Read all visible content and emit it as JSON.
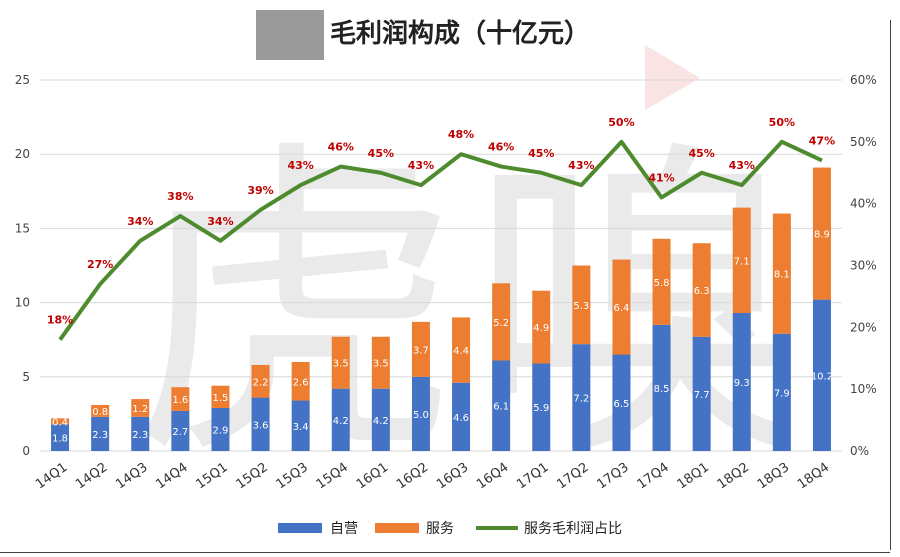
{
  "chart_data": {
    "type": "bar",
    "title": "毛利润构成（十亿元）",
    "categories": [
      "14Q1",
      "14Q2",
      "14Q3",
      "14Q4",
      "15Q1",
      "15Q2",
      "15Q3",
      "15Q4",
      "16Q1",
      "16Q2",
      "16Q3",
      "16Q4",
      "17Q1",
      "17Q2",
      "17Q3",
      "17Q4",
      "18Q1",
      "18Q2",
      "18Q3",
      "18Q4"
    ],
    "stacked": true,
    "ylim": [
      0,
      25
    ],
    "y_ticks": [
      0,
      5,
      10,
      15,
      20,
      25
    ],
    "y2lim": [
      0,
      60
    ],
    "y2_ticks": [
      "0%",
      "10%",
      "20%",
      "30%",
      "40%",
      "50%",
      "60%"
    ],
    "series": [
      {
        "name": "自营",
        "type": "bar",
        "color": "#4472C4",
        "values": [
          1.8,
          2.3,
          2.3,
          2.7,
          2.9,
          3.6,
          3.4,
          4.2,
          4.2,
          5.0,
          4.6,
          6.1,
          5.9,
          7.2,
          6.5,
          8.5,
          7.7,
          9.3,
          7.9,
          10.2
        ],
        "labels": [
          "1.8",
          "2.3",
          "2.3",
          "2.7",
          "2.9",
          "3.6",
          "3.4",
          "4.2",
          "4.2",
          "5.0",
          "4.6",
          "6.1",
          "5.9",
          "7.2",
          "6.5",
          "8.5",
          "7.7",
          "9.3",
          "7.9",
          "10.2"
        ]
      },
      {
        "name": "服务",
        "type": "bar",
        "color": "#ED7D31",
        "values": [
          0.4,
          0.8,
          1.2,
          1.6,
          1.5,
          2.2,
          2.6,
          3.5,
          3.5,
          3.7,
          4.4,
          5.2,
          4.9,
          5.3,
          6.4,
          5.8,
          6.3,
          7.1,
          8.1,
          8.9
        ],
        "labels": [
          "0.4",
          "0.8",
          "1.2",
          "1.6",
          "1.5",
          "2.2",
          "2.6",
          "3.5",
          "3.5",
          "3.7",
          "4.4",
          "5.2",
          "4.9",
          "5.3",
          "6.4",
          "5.8",
          "6.3",
          "7.1",
          "8.1",
          "8.9"
        ]
      },
      {
        "name": "服务毛利润占比",
        "type": "line",
        "axis": "right",
        "color": "#4E8A2E",
        "values": [
          18,
          27,
          34,
          38,
          34,
          39,
          43,
          46,
          45,
          43,
          48,
          46,
          45,
          43,
          50,
          41,
          45,
          43,
          50,
          47
        ],
        "labels": [
          "18%",
          "27%",
          "34%",
          "38%",
          "34%",
          "39%",
          "43%",
          "46%",
          "45%",
          "43%",
          "48%",
          "46%",
          "45%",
          "43%",
          "50%",
          "41%",
          "45%",
          "43%",
          "50%",
          "47%"
        ]
      }
    ],
    "legend_position": "bottom",
    "grid": true
  }
}
